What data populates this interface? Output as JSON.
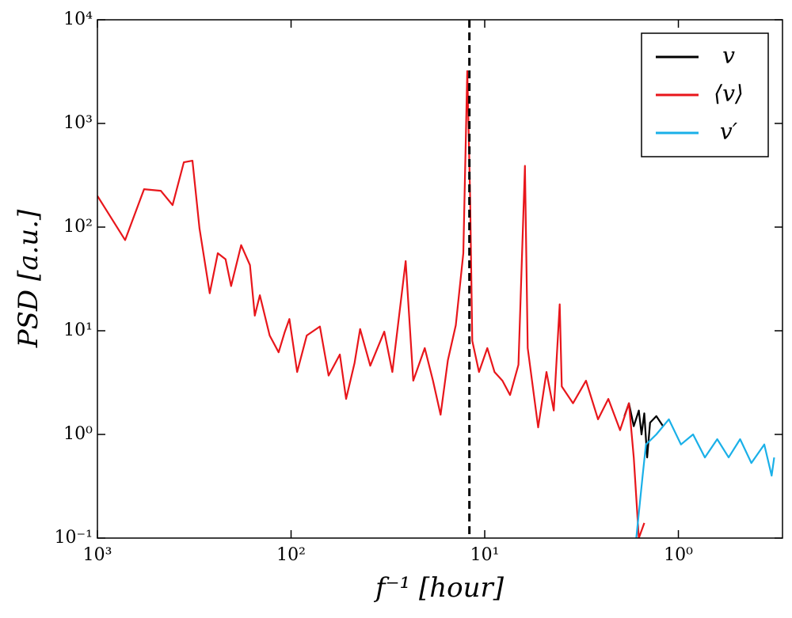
{
  "chart_data": {
    "type": "line",
    "xlabel": "f⁻¹ [hour]",
    "ylabel": "PSD [a.u.]",
    "xscale": "log",
    "yscale": "log",
    "legend": "upper right",
    "xlim": [
      1000,
      0.29
    ],
    "ylim": [
      0.1,
      10000
    ],
    "xticks": [
      {
        "value": 1000,
        "label": "10³"
      },
      {
        "value": 100,
        "label": "10²"
      },
      {
        "value": 10,
        "label": "10¹"
      },
      {
        "value": 1,
        "label": "10⁰"
      }
    ],
    "yticks": [
      {
        "value": 0.1,
        "label": "10⁻¹"
      },
      {
        "value": 1,
        "label": "10⁰"
      },
      {
        "value": 10,
        "label": "10¹"
      },
      {
        "value": 100,
        "label": "10²"
      },
      {
        "value": 1000,
        "label": "10³"
      },
      {
        "value": 10000,
        "label": "10⁴"
      }
    ],
    "vline": 12,
    "series": [
      {
        "name": "v",
        "color": "#000000",
        "x": [
          1.9,
          1.8,
          1.7,
          1.6,
          1.55,
          1.5,
          1.45,
          1.4,
          1.3,
          1.2
        ],
        "values": [
          1.5,
          2.0,
          1.2,
          1.7,
          1.0,
          1.6,
          0.6,
          1.3,
          1.5,
          1.2
        ]
      },
      {
        "name": "⟨v⟩",
        "color": "#e8161b",
        "x": [
          1000,
          719,
          574,
          471,
          409,
          358,
          323,
          297,
          263,
          239,
          218,
          204,
          181,
          163,
          154,
          145,
          129,
          116,
          108,
          102,
          93,
          83,
          71,
          64,
          56,
          52,
          47,
          44,
          39,
          33,
          30,
          25.6,
          23.4,
          20.4,
          18.5,
          16.9,
          15.5,
          14.1,
          12.9,
          12.3,
          11.9,
          11.6,
          10.7,
          9.7,
          8.9,
          8.1,
          7.4,
          6.7,
          6.2,
          6.0,
          5.3,
          4.8,
          4.4,
          4.1,
          4.0,
          3.5,
          3.0,
          2.6,
          2.3,
          2.0,
          1.8,
          1.7,
          1.6,
          1.5
        ],
        "values": [
          200,
          75,
          232,
          224,
          163,
          422,
          437,
          97,
          23,
          56,
          49,
          27,
          67,
          43,
          14,
          22,
          9,
          6.2,
          9.6,
          13,
          4,
          9,
          11,
          3.7,
          5.9,
          2.2,
          4.9,
          10.4,
          4.6,
          9.8,
          4,
          47,
          3.3,
          6.8,
          3.3,
          1.55,
          5.2,
          11.3,
          56,
          3200,
          190,
          8,
          4,
          6.8,
          4,
          3.3,
          2.4,
          4.7,
          390,
          6.8,
          1.17,
          4,
          1.7,
          18,
          2.9,
          2,
          3.3,
          1.4,
          2.2,
          1.1,
          2,
          0.6,
          0.1,
          0.14
        ]
      },
      {
        "name": "v′",
        "color": "#1ab0e8",
        "x": [
          1.65,
          1.53,
          1.47,
          1.3,
          1.12,
          0.97,
          0.84,
          0.73,
          0.63,
          0.55,
          0.48,
          0.42,
          0.36,
          0.33,
          0.32
        ],
        "values": [
          0.1,
          0.4,
          0.8,
          1.0,
          1.4,
          0.8,
          1.0,
          0.6,
          0.9,
          0.6,
          0.9,
          0.53,
          0.8,
          0.4,
          0.6
        ]
      }
    ]
  }
}
